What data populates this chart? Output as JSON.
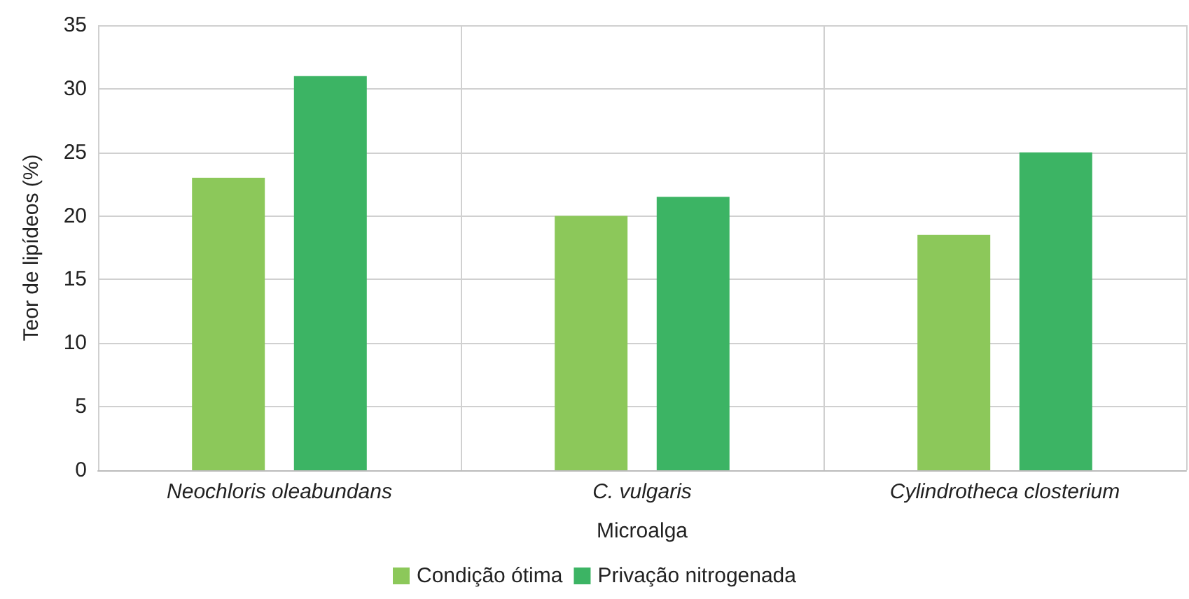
{
  "chart_data": {
    "type": "bar",
    "xlabel": "Microalga",
    "ylabel": "Teor de lipídeos (%)",
    "categories": [
      "Neochloris oleabundans",
      "C. vulgaris",
      "Cylindrotheca closterium"
    ],
    "series": [
      {
        "name": "Condição ótima",
        "color": "#8cc85a",
        "values": [
          23,
          20,
          18.5
        ]
      },
      {
        "name": "Privação nitrogenada",
        "color": "#3cb464",
        "values": [
          31,
          21.5,
          25
        ]
      }
    ],
    "ylim": [
      0,
      35
    ],
    "yticks": [
      0,
      5,
      10,
      15,
      20,
      25,
      30,
      35
    ],
    "grid": true,
    "legend": "bottom"
  }
}
